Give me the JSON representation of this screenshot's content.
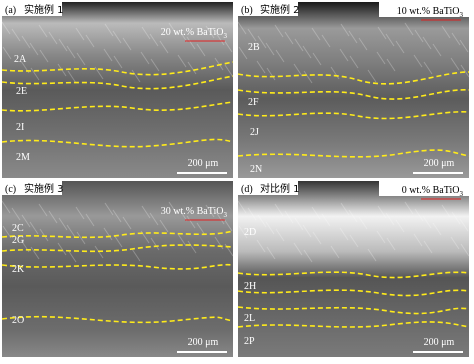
{
  "panels": [
    {
      "label": "(a)",
      "title": "实施例 1",
      "composition": {
        "text": "20 wt.% BaTiO",
        "subscript": "3"
      },
      "regions": [
        "2A",
        "2E",
        "2I",
        "2M"
      ],
      "scale": "200 μm"
    },
    {
      "label": "(b)",
      "title": "实施例 2",
      "composition": {
        "text": "10 wt.% BaTiO",
        "subscript": "3"
      },
      "regions": [
        "2B",
        "2F",
        "2J",
        "2N"
      ],
      "scale": "200 μm"
    },
    {
      "label": "(c)",
      "title": "实施例 3",
      "composition": {
        "text": "30 wt.% BaTiO",
        "subscript": "3"
      },
      "regions": [
        "2C",
        "2G",
        "2K",
        "2O"
      ],
      "scale": "200 μm"
    },
    {
      "label": "(d)",
      "title": "对比例 1",
      "composition": {
        "text": "0 wt.% BaTiO",
        "subscript": "3"
      },
      "regions": [
        "2D",
        "2H",
        "2L",
        "2P"
      ],
      "scale": "200 μm"
    }
  ]
}
